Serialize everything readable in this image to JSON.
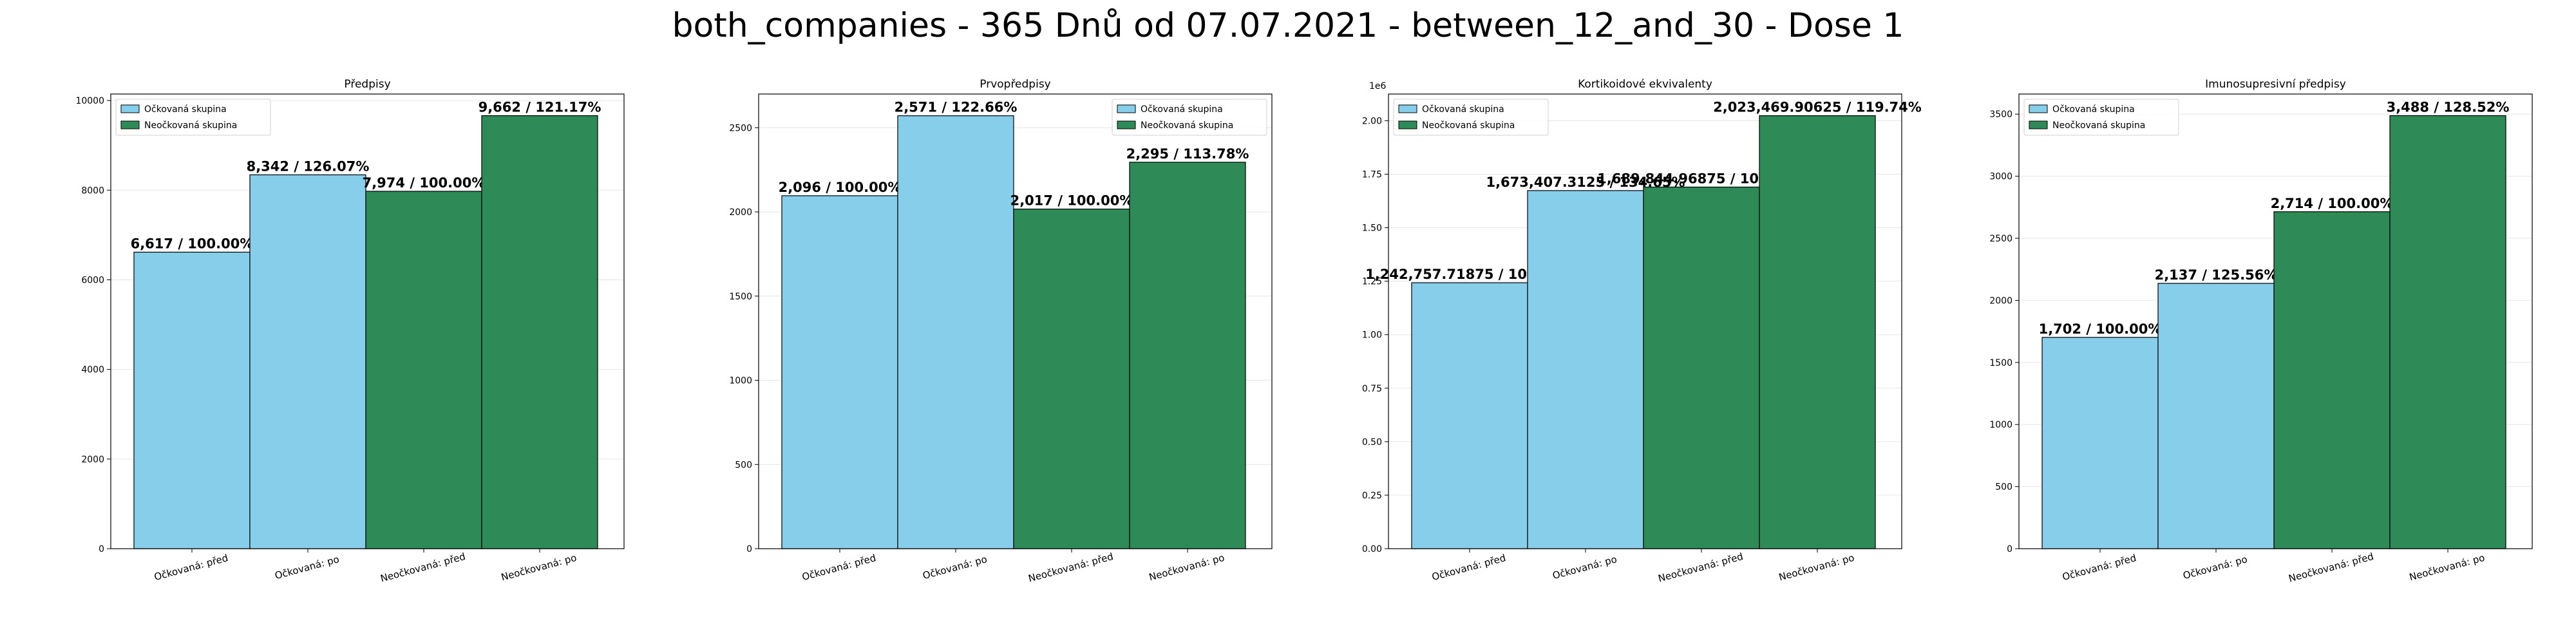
{
  "suptitle": "both_companies - 365 Dnů od 07.07.2021 - between_12_and_30 - Dose 1",
  "colors": {
    "vaccinated": "#87CEEB",
    "unvaccinated": "#2E8B57"
  },
  "legend": {
    "vaccinated": "Očkovaná skupina",
    "unvaccinated": "Neočkovaná skupina"
  },
  "chart_data": [
    {
      "type": "bar",
      "title": "Předpisy",
      "categories": [
        "Očkovaná: před",
        "Očkovaná: po",
        "Neočkovaná: před",
        "Neočkovaná: po"
      ],
      "values": [
        6617,
        8342,
        7974,
        9662
      ],
      "groups": [
        "vaccinated",
        "vaccinated",
        "unvaccinated",
        "unvaccinated"
      ],
      "bar_labels": [
        "6,617 / 100.00%",
        "8,342 / 126.07%",
        "7,974 / 100.00%",
        "9,662 / 121.17%"
      ],
      "ylim": [
        0,
        10145
      ],
      "yticks": [
        0,
        2000,
        4000,
        6000,
        8000,
        10000
      ],
      "ytick_labels": [
        "0",
        "2000",
        "4000",
        "6000",
        "8000",
        "10000"
      ],
      "scale_label": "",
      "legend_position": "top-left",
      "grid": true
    },
    {
      "type": "bar",
      "title": "Prvopředpisy",
      "categories": [
        "Očkovaná: před",
        "Očkovaná: po",
        "Neočkovaná: před",
        "Neočkovaná: po"
      ],
      "values": [
        2096,
        2571,
        2017,
        2295
      ],
      "groups": [
        "vaccinated",
        "vaccinated",
        "unvaccinated",
        "unvaccinated"
      ],
      "bar_labels": [
        "2,096 / 100.00%",
        "2,571 / 122.66%",
        "2,017 / 100.00%",
        "2,295 / 113.78%"
      ],
      "ylim": [
        0,
        2700
      ],
      "yticks": [
        0,
        500,
        1000,
        1500,
        2000,
        2500
      ],
      "ytick_labels": [
        "0",
        "500",
        "1000",
        "1500",
        "2000",
        "2500"
      ],
      "scale_label": "",
      "legend_position": "top-right",
      "grid": true
    },
    {
      "type": "bar",
      "title": "Kortikoidové ekvivalenty",
      "categories": [
        "Očkovaná: před",
        "Očkovaná: po",
        "Neočkovaná: před",
        "Neočkovaná: po"
      ],
      "values": [
        1242757.71875,
        1673407.3125,
        1689844.96875,
        2023469.90625
      ],
      "groups": [
        "vaccinated",
        "vaccinated",
        "unvaccinated",
        "unvaccinated"
      ],
      "bar_labels": [
        "1,242,757.71875 / 100.00%",
        "1,673,407.3125 / 134.65%",
        "1,689,844.96875 / 100.00%",
        "2,023,469.90625 / 119.74%"
      ],
      "ylim": [
        0,
        2124643
      ],
      "yticks": [
        0,
        250000,
        500000,
        750000,
        1000000,
        1250000,
        1500000,
        1750000,
        2000000
      ],
      "ytick_labels": [
        "0.00",
        "0.25",
        "0.50",
        "0.75",
        "1.00",
        "1.25",
        "1.50",
        "1.75",
        "2.00"
      ],
      "scale_label": "1e6",
      "legend_position": "top-left",
      "grid": true
    },
    {
      "type": "bar",
      "title": "Imunosupresivní předpisy",
      "categories": [
        "Očkovaná: před",
        "Očkovaná: po",
        "Neočkovaná: před",
        "Neočkovaná: po"
      ],
      "values": [
        1702,
        2137,
        2714,
        3488
      ],
      "groups": [
        "vaccinated",
        "vaccinated",
        "unvaccinated",
        "unvaccinated"
      ],
      "bar_labels": [
        "1,702 / 100.00%",
        "2,137 / 125.56%",
        "2,714 / 100.00%",
        "3,488 / 128.52%"
      ],
      "ylim": [
        0,
        3662
      ],
      "yticks": [
        0,
        500,
        1000,
        1500,
        2000,
        2500,
        3000,
        3500
      ],
      "ytick_labels": [
        "0",
        "500",
        "1000",
        "1500",
        "2000",
        "2500",
        "3000",
        "3500"
      ],
      "scale_label": "",
      "legend_position": "top-left",
      "grid": true
    }
  ]
}
